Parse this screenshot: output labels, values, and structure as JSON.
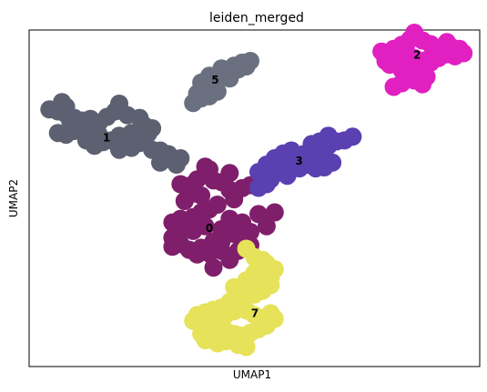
{
  "chart_data": {
    "type": "scatter",
    "title": "leiden_merged",
    "xlabel": "UMAP1",
    "ylabel": "UMAP2",
    "xlim": [
      0,
      100
    ],
    "ylim": [
      0,
      100
    ],
    "grid": false,
    "legend": "on data",
    "series": [
      {
        "label": "0",
        "color": "#7f1f6b",
        "label_pos": [
          40.0,
          41.0
        ],
        "points": [
          [
            33.6,
            54.2
          ],
          [
            36.4,
            54.2
          ],
          [
            39.1,
            59.4
          ],
          [
            40.0,
            58.6
          ],
          [
            44.5,
            57.5
          ],
          [
            37.3,
            55.6
          ],
          [
            40.9,
            55.3
          ],
          [
            42.7,
            54.8
          ],
          [
            36.4,
            51.4
          ],
          [
            38.2,
            50.8
          ],
          [
            34.5,
            49.2
          ],
          [
            44.5,
            52.5
          ],
          [
            47.3,
            53.0
          ],
          [
            49.1,
            53.9
          ],
          [
            45.5,
            49.7
          ],
          [
            41.8,
            48.1
          ],
          [
            40.0,
            46.7
          ],
          [
            38.2,
            45.8
          ],
          [
            36.4,
            44.4
          ],
          [
            33.6,
            43.9
          ],
          [
            31.8,
            42.8
          ],
          [
            34.5,
            40.8
          ],
          [
            36.4,
            40.3
          ],
          [
            39.1,
            41.7
          ],
          [
            42.7,
            40.8
          ],
          [
            46.4,
            41.7
          ],
          [
            47.3,
            42.8
          ],
          [
            44.5,
            43.9
          ],
          [
            50.9,
            45.3
          ],
          [
            54.5,
            45.8
          ],
          [
            52.7,
            41.7
          ],
          [
            49.1,
            40.0
          ],
          [
            45.5,
            39.4
          ],
          [
            42.7,
            37.2
          ],
          [
            40.9,
            37.2
          ],
          [
            38.2,
            35.3
          ],
          [
            37.3,
            33.3
          ],
          [
            35.5,
            34.7
          ],
          [
            33.6,
            36.4
          ],
          [
            31.8,
            35.6
          ],
          [
            31.8,
            38.3
          ],
          [
            42.7,
            34.4
          ],
          [
            40.0,
            33.6
          ],
          [
            40.9,
            29.4
          ],
          [
            44.5,
            31.7
          ],
          [
            46.4,
            34.4
          ],
          [
            49.1,
            36.1
          ],
          [
            47.3,
            37.5
          ]
        ]
      },
      {
        "label": "1",
        "color": "#5c6070",
        "label_pos": [
          17.2,
          67.8
        ],
        "points": [
          [
            4.5,
            76.4
          ],
          [
            6.4,
            75.8
          ],
          [
            8.2,
            75.0
          ],
          [
            10.0,
            73.9
          ],
          [
            11.8,
            73.1
          ],
          [
            13.6,
            73.6
          ],
          [
            15.5,
            72.5
          ],
          [
            17.3,
            74.2
          ],
          [
            19.1,
            75.8
          ],
          [
            21.8,
            74.7
          ],
          [
            24.5,
            73.9
          ],
          [
            25.5,
            71.7
          ],
          [
            27.3,
            70.8
          ],
          [
            26.4,
            69.2
          ],
          [
            22.7,
            69.4
          ],
          [
            20.0,
            68.6
          ],
          [
            18.2,
            67.2
          ],
          [
            16.4,
            66.7
          ],
          [
            15.5,
            68.9
          ],
          [
            13.6,
            70.3
          ],
          [
            11.8,
            71.1
          ],
          [
            10.0,
            70.0
          ],
          [
            8.2,
            68.9
          ],
          [
            6.4,
            69.4
          ],
          [
            9.1,
            73.1
          ],
          [
            12.7,
            67.2
          ],
          [
            14.5,
            65.6
          ],
          [
            24.5,
            66.4
          ],
          [
            22.7,
            65.0
          ],
          [
            20.0,
            64.4
          ],
          [
            27.3,
            64.4
          ],
          [
            29.1,
            64.2
          ],
          [
            30.9,
            63.1
          ],
          [
            33.6,
            61.9
          ],
          [
            32.7,
            60.0
          ],
          [
            29.1,
            60.6
          ],
          [
            20.0,
            78.1
          ],
          [
            7.3,
            78.6
          ],
          [
            8.2,
            77.2
          ]
        ]
      },
      {
        "label": "2",
        "color": "#e020c0",
        "label_pos": [
          86.1,
          92.4
        ],
        "points": [
          [
            78.2,
            93.6
          ],
          [
            79.1,
            92.5
          ],
          [
            80.9,
            91.4
          ],
          [
            80.9,
            94.4
          ],
          [
            82.7,
            95.6
          ],
          [
            83.6,
            94.2
          ],
          [
            84.5,
            97.2
          ],
          [
            85.5,
            99.2
          ],
          [
            87.3,
            96.9
          ],
          [
            89.1,
            95.8
          ],
          [
            90.9,
            94.7
          ],
          [
            92.7,
            96.4
          ],
          [
            93.6,
            95.0
          ],
          [
            95.5,
            94.4
          ],
          [
            96.4,
            93.1
          ],
          [
            94.5,
            92.2
          ],
          [
            92.7,
            92.8
          ],
          [
            90.9,
            91.7
          ],
          [
            88.2,
            91.1
          ],
          [
            86.4,
            90.6
          ],
          [
            85.5,
            91.7
          ],
          [
            84.5,
            89.2
          ],
          [
            82.7,
            88.1
          ],
          [
            81.8,
            89.7
          ],
          [
            83.6,
            86.9
          ],
          [
            86.4,
            85.8
          ],
          [
            87.3,
            86.7
          ],
          [
            85.5,
            85.0
          ],
          [
            83.6,
            87.8
          ],
          [
            82.7,
            84.2
          ],
          [
            80.9,
            83.1
          ],
          [
            87.3,
            83.9
          ],
          [
            88.2,
            86.1
          ],
          [
            89.1,
            90.3
          ],
          [
            80.0,
            89.7
          ],
          [
            79.1,
            90.8
          ]
        ]
      },
      {
        "label": "3",
        "color": "#5a40b0",
        "label_pos": [
          59.9,
          61.0
        ],
        "points": [
          [
            50.9,
            57.8
          ],
          [
            52.7,
            60.0
          ],
          [
            54.5,
            61.9
          ],
          [
            56.4,
            63.3
          ],
          [
            58.2,
            64.2
          ],
          [
            60.9,
            63.1
          ],
          [
            62.7,
            61.4
          ],
          [
            64.5,
            63.3
          ],
          [
            66.4,
            65.6
          ],
          [
            68.2,
            66.9
          ],
          [
            70.0,
            67.2
          ],
          [
            71.8,
            68.3
          ],
          [
            66.4,
            68.6
          ],
          [
            64.5,
            66.9
          ],
          [
            62.7,
            66.1
          ],
          [
            61.8,
            60.0
          ],
          [
            60.0,
            58.9
          ],
          [
            58.2,
            60.6
          ],
          [
            56.4,
            59.7
          ],
          [
            54.5,
            57.2
          ],
          [
            53.6,
            55.6
          ],
          [
            52.7,
            54.2
          ],
          [
            50.9,
            53.1
          ],
          [
            59.1,
            62.8
          ],
          [
            63.6,
            58.9
          ],
          [
            65.5,
            59.2
          ],
          [
            67.3,
            60.6
          ],
          [
            57.3,
            56.7
          ]
        ]
      },
      {
        "label": "5",
        "color": "#6a7080",
        "label_pos": [
          41.3,
          85.0
        ],
        "points": [
          [
            37.3,
            81.1
          ],
          [
            39.1,
            82.5
          ],
          [
            40.9,
            83.3
          ],
          [
            41.8,
            81.7
          ],
          [
            40.0,
            80.3
          ],
          [
            38.2,
            79.7
          ],
          [
            36.4,
            78.3
          ],
          [
            38.2,
            84.4
          ],
          [
            40.0,
            86.4
          ],
          [
            42.7,
            86.9
          ],
          [
            44.5,
            87.8
          ],
          [
            46.4,
            88.3
          ],
          [
            48.2,
            89.2
          ],
          [
            49.1,
            90.8
          ],
          [
            47.3,
            90.3
          ],
          [
            45.5,
            89.4
          ],
          [
            42.7,
            88.6
          ],
          [
            40.9,
            85.0
          ],
          [
            44.5,
            85.6
          ]
        ]
      },
      {
        "label": "7",
        "color": "#e6e25a",
        "label_pos": [
          50.1,
          15.7
        ],
        "points": [
          [
            48.2,
            35.0
          ],
          [
            50.0,
            32.5
          ],
          [
            51.8,
            31.7
          ],
          [
            50.9,
            29.2
          ],
          [
            50.0,
            27.8
          ],
          [
            49.1,
            26.1
          ],
          [
            48.2,
            24.7
          ],
          [
            50.0,
            23.9
          ],
          [
            51.8,
            25.3
          ],
          [
            53.6,
            26.4
          ],
          [
            54.5,
            28.9
          ],
          [
            52.7,
            30.6
          ],
          [
            51.8,
            22.5
          ],
          [
            50.0,
            21.4
          ],
          [
            47.3,
            20.8
          ],
          [
            45.5,
            23.6
          ],
          [
            48.2,
            25.6
          ],
          [
            53.6,
            24.2
          ],
          [
            47.3,
            18.3
          ],
          [
            45.5,
            16.4
          ],
          [
            43.6,
            15.3
          ],
          [
            42.7,
            13.6
          ],
          [
            41.8,
            12.5
          ],
          [
            40.0,
            13.1
          ],
          [
            38.2,
            12.8
          ],
          [
            36.4,
            13.6
          ],
          [
            37.3,
            15.3
          ],
          [
            39.1,
            16.1
          ],
          [
            40.9,
            16.9
          ],
          [
            42.7,
            17.5
          ],
          [
            44.5,
            19.2
          ],
          [
            46.4,
            17.8
          ],
          [
            48.2,
            16.7
          ],
          [
            50.0,
            15.3
          ],
          [
            51.8,
            14.4
          ],
          [
            53.6,
            15.8
          ],
          [
            54.5,
            14.2
          ],
          [
            52.7,
            12.2
          ],
          [
            50.9,
            11.1
          ],
          [
            49.1,
            10.0
          ],
          [
            47.3,
            9.2
          ],
          [
            45.5,
            9.7
          ],
          [
            43.6,
            10.6
          ],
          [
            41.8,
            11.4
          ],
          [
            40.0,
            9.2
          ],
          [
            38.2,
            9.7
          ],
          [
            39.1,
            7.8
          ],
          [
            41.8,
            6.9
          ],
          [
            43.6,
            7.5
          ],
          [
            46.4,
            6.4
          ],
          [
            48.2,
            5.8
          ]
        ]
      }
    ]
  }
}
